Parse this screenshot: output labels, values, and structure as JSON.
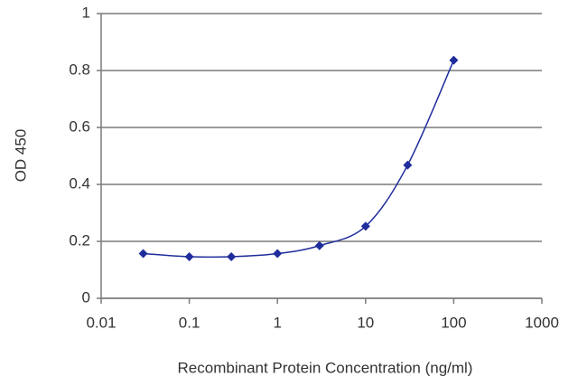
{
  "chart_data": {
    "type": "line",
    "xlabel": "Recombinant Protein Concentration (ng/ml)",
    "ylabel": "OD 450",
    "x": [
      0.03,
      0.1,
      0.3,
      1,
      3,
      10,
      30,
      100
    ],
    "series": [
      {
        "color": "#1f2d9c",
        "values": [
          0.157,
          0.146,
          0.146,
          0.157,
          0.185,
          0.253,
          0.468,
          0.836
        ]
      }
    ],
    "xlim": [
      0.01,
      1000
    ],
    "xticks": [
      0.01,
      0.1,
      1,
      10,
      100,
      1000
    ],
    "xscale": "log",
    "ylim": [
      0,
      1
    ],
    "yticks": [
      0,
      0.2,
      0.4,
      0.6,
      0.8,
      1
    ],
    "grid": true
  }
}
